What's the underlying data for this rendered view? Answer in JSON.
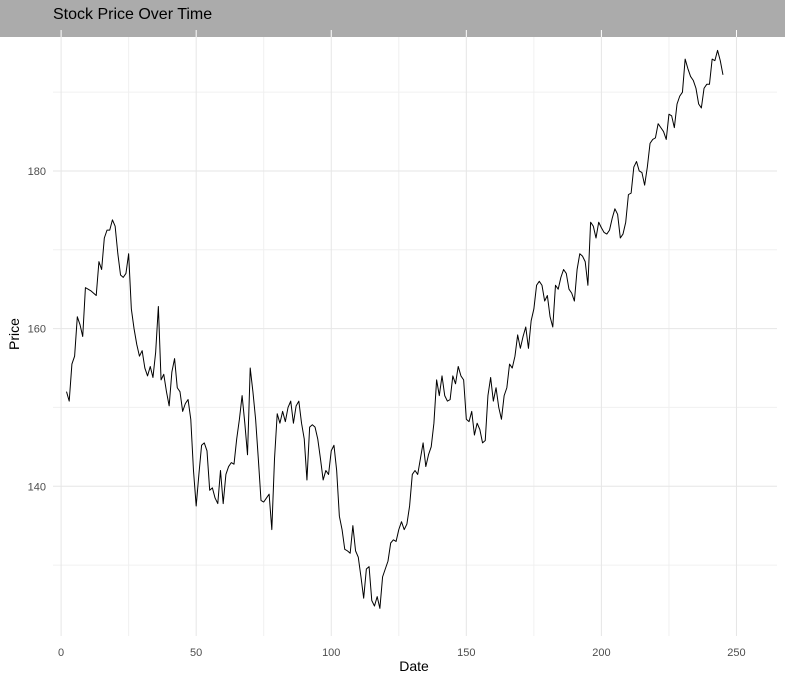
{
  "chart_data": {
    "type": "line",
    "title": "Stock Price Over Time",
    "xlabel": "Date",
    "ylabel": "Price",
    "xlim": [
      -3,
      265
    ],
    "ylim": [
      121,
      197
    ],
    "x_ticks": [
      0,
      50,
      100,
      150,
      200,
      250
    ],
    "y_ticks": [
      140,
      160,
      180
    ],
    "grid": true,
    "series": [
      {
        "values": [
          [
            2,
            152
          ],
          [
            3,
            150.8
          ],
          [
            4,
            155.5
          ],
          [
            5,
            156.5
          ],
          [
            6,
            161.5
          ],
          [
            7,
            160.5
          ],
          [
            8,
            159
          ],
          [
            9,
            165.2
          ],
          [
            10,
            165
          ],
          [
            11,
            164.8
          ],
          [
            12,
            164.5
          ],
          [
            13,
            164.2
          ],
          [
            14,
            168.5
          ],
          [
            15,
            167.5
          ],
          [
            16,
            171.5
          ],
          [
            17,
            172.5
          ],
          [
            18,
            172.5
          ],
          [
            19,
            173.8
          ],
          [
            20,
            173
          ],
          [
            21,
            169.5
          ],
          [
            22,
            166.8
          ],
          [
            23,
            166.5
          ],
          [
            24,
            167
          ],
          [
            25,
            169.5
          ],
          [
            26,
            162.5
          ],
          [
            27,
            160
          ],
          [
            28,
            158
          ],
          [
            29,
            156.5
          ],
          [
            30,
            157.2
          ],
          [
            31,
            155
          ],
          [
            32,
            154
          ],
          [
            33,
            155.2
          ],
          [
            34,
            153.8
          ],
          [
            35,
            157
          ],
          [
            36,
            162.8
          ],
          [
            37,
            153.5
          ],
          [
            38,
            154.2
          ],
          [
            39,
            152
          ],
          [
            40,
            150.2
          ],
          [
            41,
            154.5
          ],
          [
            42,
            156.2
          ],
          [
            43,
            152.5
          ],
          [
            44,
            152
          ],
          [
            45,
            149.5
          ],
          [
            46,
            150.5
          ],
          [
            47,
            151
          ],
          [
            48,
            148.5
          ],
          [
            49,
            142
          ],
          [
            50,
            137.5
          ],
          [
            51,
            141.5
          ],
          [
            52,
            145.2
          ],
          [
            53,
            145.5
          ],
          [
            54,
            144.5
          ],
          [
            55,
            139.5
          ],
          [
            56,
            139.8
          ],
          [
            57,
            138.5
          ],
          [
            58,
            137.8
          ],
          [
            59,
            142
          ],
          [
            60,
            137.8
          ],
          [
            61,
            141.5
          ],
          [
            62,
            142.5
          ],
          [
            63,
            143
          ],
          [
            64,
            142.8
          ],
          [
            65,
            146
          ],
          [
            66,
            148.5
          ],
          [
            67,
            151.5
          ],
          [
            68,
            148
          ],
          [
            69,
            144
          ],
          [
            70,
            155
          ],
          [
            71,
            152
          ],
          [
            72,
            148.5
          ],
          [
            73,
            143.5
          ],
          [
            74,
            138.2
          ],
          [
            75,
            138
          ],
          [
            76,
            138.5
          ],
          [
            77,
            139
          ],
          [
            78,
            134.5
          ],
          [
            79,
            143.5
          ],
          [
            80,
            149.2
          ],
          [
            81,
            148
          ],
          [
            82,
            149.5
          ],
          [
            83,
            148.2
          ],
          [
            84,
            150
          ],
          [
            85,
            150.8
          ],
          [
            86,
            148
          ],
          [
            87,
            150.2
          ],
          [
            88,
            150.8
          ],
          [
            89,
            148
          ],
          [
            90,
            146
          ],
          [
            91,
            140.8
          ],
          [
            92,
            147.5
          ],
          [
            93,
            147.8
          ],
          [
            94,
            147.5
          ],
          [
            95,
            146
          ],
          [
            96,
            143.5
          ],
          [
            97,
            140.8
          ],
          [
            98,
            142
          ],
          [
            99,
            141.5
          ],
          [
            100,
            144.5
          ],
          [
            101,
            145.2
          ],
          [
            102,
            142
          ],
          [
            103,
            136.2
          ],
          [
            104,
            134.5
          ],
          [
            105,
            132
          ],
          [
            106,
            131.8
          ],
          [
            107,
            131.5
          ],
          [
            108,
            135
          ],
          [
            109,
            131.8
          ],
          [
            110,
            131
          ],
          [
            111,
            128.5
          ],
          [
            112,
            125.8
          ],
          [
            113,
            129.5
          ],
          [
            114,
            129.8
          ],
          [
            115,
            125.5
          ],
          [
            116,
            124.8
          ],
          [
            117,
            126
          ],
          [
            118,
            124.5
          ],
          [
            119,
            128.5
          ],
          [
            120,
            129.5
          ],
          [
            121,
            130.5
          ],
          [
            122,
            132.8
          ],
          [
            123,
            133.2
          ],
          [
            124,
            133
          ],
          [
            125,
            134.5
          ],
          [
            126,
            135.5
          ],
          [
            127,
            134.5
          ],
          [
            128,
            135.2
          ],
          [
            129,
            137.5
          ],
          [
            130,
            141.5
          ],
          [
            131,
            142
          ],
          [
            132,
            141.5
          ],
          [
            133,
            143.5
          ],
          [
            134,
            145.5
          ],
          [
            135,
            142.5
          ],
          [
            136,
            144
          ],
          [
            137,
            145
          ],
          [
            138,
            148
          ],
          [
            139,
            153.5
          ],
          [
            140,
            151.5
          ],
          [
            141,
            154
          ],
          [
            142,
            151.5
          ],
          [
            143,
            150.8
          ],
          [
            144,
            151
          ],
          [
            145,
            154
          ],
          [
            146,
            153
          ],
          [
            147,
            155.2
          ],
          [
            148,
            154
          ],
          [
            149,
            153.5
          ],
          [
            150,
            148.5
          ],
          [
            151,
            148.2
          ],
          [
            152,
            149.5
          ],
          [
            153,
            146.5
          ],
          [
            154,
            148
          ],
          [
            155,
            147.2
          ],
          [
            156,
            145.5
          ],
          [
            157,
            145.8
          ],
          [
            158,
            151.5
          ],
          [
            159,
            153.8
          ],
          [
            160,
            150.8
          ],
          [
            161,
            152.5
          ],
          [
            162,
            150
          ],
          [
            163,
            148.5
          ],
          [
            164,
            151.5
          ],
          [
            165,
            152.5
          ],
          [
            166,
            155.5
          ],
          [
            167,
            155
          ],
          [
            168,
            156.5
          ],
          [
            169,
            159.2
          ],
          [
            170,
            157.5
          ],
          [
            171,
            159
          ],
          [
            172,
            160.2
          ],
          [
            173,
            157.5
          ],
          [
            174,
            161
          ],
          [
            175,
            162.5
          ],
          [
            176,
            165.5
          ],
          [
            177,
            166
          ],
          [
            178,
            165.5
          ],
          [
            179,
            163.5
          ],
          [
            180,
            164.2
          ],
          [
            181,
            161.5
          ],
          [
            182,
            160.2
          ],
          [
            183,
            165.5
          ],
          [
            184,
            165
          ],
          [
            185,
            166.5
          ],
          [
            186,
            167.5
          ],
          [
            187,
            167
          ],
          [
            188,
            165
          ],
          [
            189,
            164.5
          ],
          [
            190,
            163.5
          ],
          [
            191,
            167.5
          ],
          [
            192,
            169.5
          ],
          [
            193,
            169.2
          ],
          [
            194,
            168.5
          ],
          [
            195,
            165.5
          ],
          [
            196,
            173.5
          ],
          [
            197,
            173
          ],
          [
            198,
            171.5
          ],
          [
            199,
            173.5
          ],
          [
            200,
            172.8
          ],
          [
            201,
            172.2
          ],
          [
            202,
            172
          ],
          [
            203,
            172.5
          ],
          [
            204,
            174
          ],
          [
            205,
            175.2
          ],
          [
            206,
            174.5
          ],
          [
            207,
            171.5
          ],
          [
            208,
            172
          ],
          [
            209,
            173.5
          ],
          [
            210,
            177
          ],
          [
            211,
            177.2
          ],
          [
            212,
            180.5
          ],
          [
            213,
            181.2
          ],
          [
            214,
            180
          ],
          [
            215,
            179.8
          ],
          [
            216,
            178.2
          ],
          [
            217,
            180.5
          ],
          [
            218,
            183.5
          ],
          [
            219,
            184
          ],
          [
            220,
            184.2
          ],
          [
            221,
            186
          ],
          [
            222,
            185.5
          ],
          [
            223,
            185
          ],
          [
            224,
            184
          ],
          [
            225,
            187.2
          ],
          [
            226,
            187
          ],
          [
            227,
            185.5
          ],
          [
            228,
            188.5
          ],
          [
            229,
            189.5
          ],
          [
            230,
            190
          ],
          [
            231,
            194.2
          ],
          [
            232,
            193
          ],
          [
            233,
            192
          ],
          [
            234,
            191.5
          ],
          [
            235,
            190.5
          ],
          [
            236,
            188.5
          ],
          [
            237,
            188
          ],
          [
            238,
            190.5
          ],
          [
            239,
            191
          ],
          [
            240,
            191
          ],
          [
            241,
            194.2
          ],
          [
            242,
            194
          ],
          [
            243,
            195.3
          ],
          [
            244,
            194
          ],
          [
            245,
            192.2
          ]
        ]
      }
    ]
  }
}
